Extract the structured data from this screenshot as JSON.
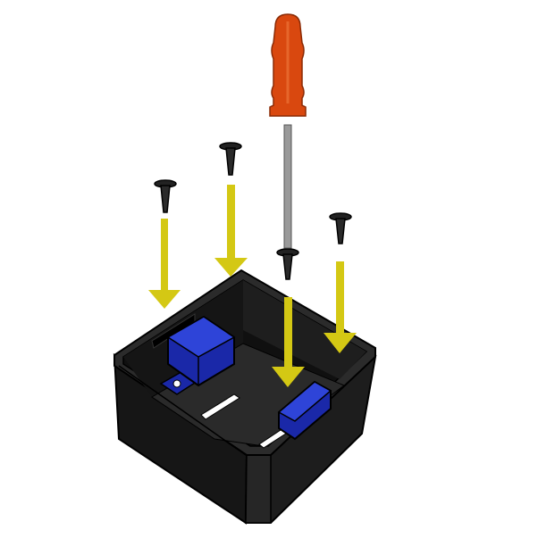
{
  "illustration": {
    "colors": {
      "background": "#ffffff",
      "housing": "#1b1b1b",
      "housing_edge": "#000000",
      "floor": "#2a2a2a",
      "servo": "#1a28a8",
      "servo_highlight": "#2e44d8",
      "arrow": "#d4c814",
      "screw": "#222222",
      "screwdriver_handle": "#d9480f",
      "screwdriver_shaft": "#9a9a9a",
      "slot": "#ffffff"
    },
    "icons": [
      "screwdriver-icon",
      "screw-icon",
      "down-arrow-icon",
      "servo-motor-icon",
      "enclosure-box-icon"
    ],
    "screw_count": 4,
    "arrow_count": 4
  }
}
